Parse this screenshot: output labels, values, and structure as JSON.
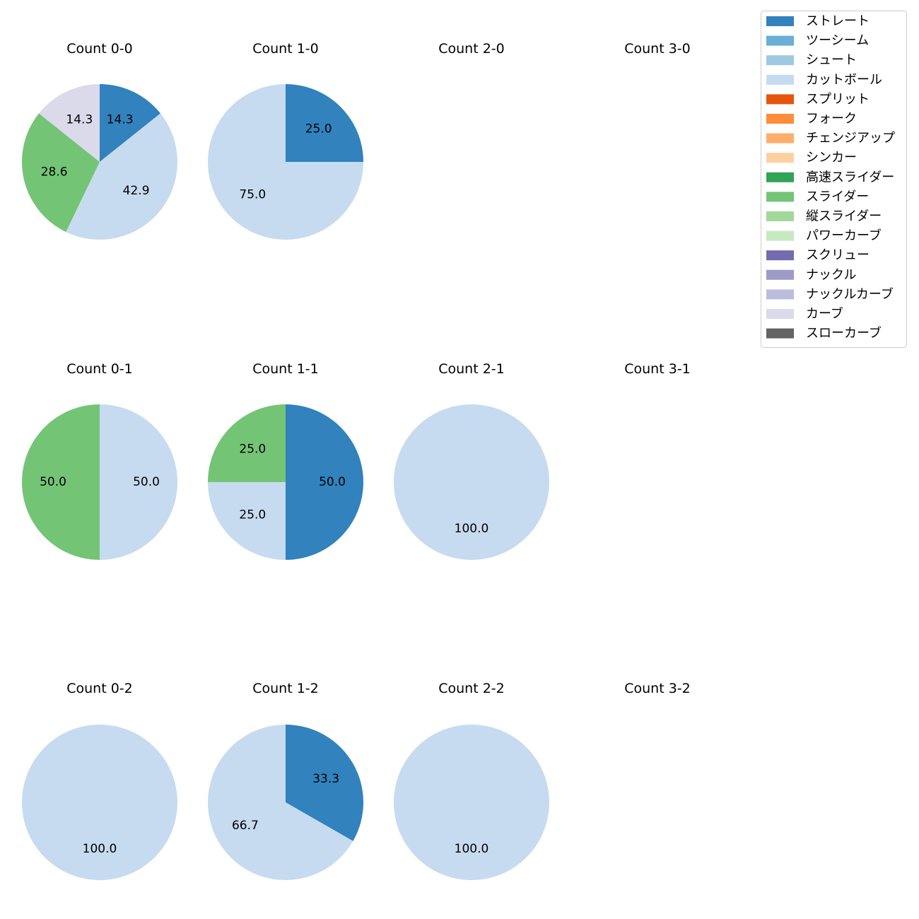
{
  "chart_data": {
    "type": "pie",
    "title": "",
    "legend_position": "top-right",
    "legend": [
      {
        "name": "ストレート",
        "color": "#3182bd"
      },
      {
        "name": "ツーシーム",
        "color": "#6baed6"
      },
      {
        "name": "シュート",
        "color": "#9ecae1"
      },
      {
        "name": "カットボール",
        "color": "#c6dbef"
      },
      {
        "name": "スプリット",
        "color": "#e6550d"
      },
      {
        "name": "フォーク",
        "color": "#fd8d3c"
      },
      {
        "name": "チェンジアップ",
        "color": "#fdae6b"
      },
      {
        "name": "シンカー",
        "color": "#fdd0a2"
      },
      {
        "name": "高速スライダー",
        "color": "#31a354"
      },
      {
        "name": "スライダー",
        "color": "#74c476"
      },
      {
        "name": "縦スライダー",
        "color": "#a1d99b"
      },
      {
        "name": "パワーカーブ",
        "color": "#c7e9c0"
      },
      {
        "name": "スクリュー",
        "color": "#756bb1"
      },
      {
        "name": "ナックル",
        "color": "#9e9ac8"
      },
      {
        "name": "ナックルカーブ",
        "color": "#bcbddc"
      },
      {
        "name": "カーブ",
        "color": "#dadaeb"
      },
      {
        "name": "スローカーブ",
        "color": "#636363"
      }
    ],
    "panels": [
      {
        "title": "Count 0-0",
        "slices": [
          {
            "pitch": "ストレート",
            "value": 14.3
          },
          {
            "pitch": "カットボール",
            "value": 42.9
          },
          {
            "pitch": "スライダー",
            "value": 28.6
          },
          {
            "pitch": "カーブ",
            "value": 14.3
          }
        ]
      },
      {
        "title": "Count 1-0",
        "slices": [
          {
            "pitch": "ストレート",
            "value": 25.0
          },
          {
            "pitch": "カットボール",
            "value": 75.0
          }
        ]
      },
      {
        "title": "Count 2-0",
        "slices": []
      },
      {
        "title": "Count 3-0",
        "slices": []
      },
      {
        "title": "Count 0-1",
        "slices": [
          {
            "pitch": "カットボール",
            "value": 50.0
          },
          {
            "pitch": "スライダー",
            "value": 50.0
          }
        ]
      },
      {
        "title": "Count 1-1",
        "slices": [
          {
            "pitch": "ストレート",
            "value": 50.0
          },
          {
            "pitch": "カットボール",
            "value": 25.0
          },
          {
            "pitch": "スライダー",
            "value": 25.0
          }
        ]
      },
      {
        "title": "Count 2-1",
        "slices": [
          {
            "pitch": "カットボール",
            "value": 100.0
          }
        ]
      },
      {
        "title": "Count 3-1",
        "slices": []
      },
      {
        "title": "Count 0-2",
        "slices": [
          {
            "pitch": "カットボール",
            "value": 100.0
          }
        ]
      },
      {
        "title": "Count 1-2",
        "slices": [
          {
            "pitch": "ストレート",
            "value": 33.3
          },
          {
            "pitch": "カットボール",
            "value": 66.7
          }
        ]
      },
      {
        "title": "Count 2-2",
        "slices": [
          {
            "pitch": "カットボール",
            "value": 100.0
          }
        ]
      },
      {
        "title": "Count 3-2",
        "slices": []
      }
    ]
  }
}
